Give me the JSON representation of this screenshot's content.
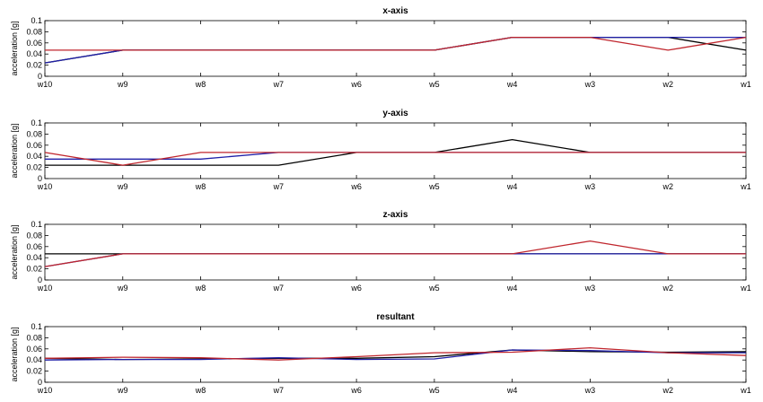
{
  "chart_data": [
    {
      "type": "line",
      "title": "x-axis",
      "ylabel": "acceleration [g]",
      "categories": [
        "w10",
        "w9",
        "w8",
        "w7",
        "w6",
        "w5",
        "w4",
        "w3",
        "w2",
        "w1"
      ],
      "yticks": [
        "0",
        "0.02",
        "0.04",
        "0.06",
        "0.08",
        "0.1"
      ],
      "ylim": [
        0,
        0.1
      ],
      "grid": false,
      "series": [
        {
          "color": "#000000",
          "values": [
            0.024,
            0.047,
            0.047,
            0.047,
            0.047,
            0.047,
            0.07,
            0.07,
            0.07,
            0.047
          ]
        },
        {
          "color": "#1f1fa8",
          "values": [
            0.024,
            0.047,
            0.047,
            0.047,
            0.047,
            0.047,
            0.07,
            0.07,
            0.07,
            0.07
          ]
        },
        {
          "color": "#c0262d",
          "values": [
            0.047,
            0.047,
            0.047,
            0.047,
            0.047,
            0.047,
            0.07,
            0.07,
            0.047,
            0.07
          ]
        }
      ]
    },
    {
      "type": "line",
      "title": "y-axis",
      "ylabel": "acceleration [g]",
      "categories": [
        "w10",
        "w9",
        "w8",
        "w7",
        "w6",
        "w5",
        "w4",
        "w3",
        "w2",
        "w1"
      ],
      "yticks": [
        "0",
        "0.02",
        "0.04",
        "0.06",
        "0.08",
        "0.1"
      ],
      "ylim": [
        0,
        0.1
      ],
      "grid": false,
      "series": [
        {
          "color": "#000000",
          "values": [
            0.024,
            0.024,
            0.024,
            0.024,
            0.047,
            0.047,
            0.07,
            0.047,
            0.047,
            0.047
          ]
        },
        {
          "color": "#1f1fa8",
          "values": [
            0.035,
            0.035,
            0.035,
            0.047,
            0.047,
            0.047,
            0.047,
            0.047,
            0.047,
            0.047
          ]
        },
        {
          "color": "#c0262d",
          "values": [
            0.047,
            0.024,
            0.047,
            0.047,
            0.047,
            0.047,
            0.047,
            0.047,
            0.047,
            0.047
          ]
        }
      ]
    },
    {
      "type": "line",
      "title": "z-axis",
      "ylabel": "acceleration [g]",
      "categories": [
        "w10",
        "w9",
        "w8",
        "w7",
        "w6",
        "w5",
        "w4",
        "w3",
        "w2",
        "w1"
      ],
      "yticks": [
        "0",
        "0.02",
        "0.04",
        "0.06",
        "0.08",
        "0.1"
      ],
      "ylim": [
        0,
        0.1
      ],
      "grid": false,
      "series": [
        {
          "color": "#000000",
          "values": [
            0.047,
            0.047,
            0.047,
            0.047,
            0.047,
            0.047,
            0.047,
            0.047,
            0.047,
            0.047
          ]
        },
        {
          "color": "#1f1fa8",
          "values": [
            0.024,
            0.047,
            0.047,
            0.047,
            0.047,
            0.047,
            0.047,
            0.047,
            0.047,
            0.047
          ]
        },
        {
          "color": "#c0262d",
          "values": [
            0.024,
            0.047,
            0.047,
            0.047,
            0.047,
            0.047,
            0.047,
            0.07,
            0.047,
            0.047
          ]
        }
      ]
    },
    {
      "type": "line",
      "title": "resultant",
      "ylabel": "acceleration [g]",
      "categories": [
        "w10",
        "w9",
        "w8",
        "w7",
        "w6",
        "w5",
        "w4",
        "w3",
        "w2",
        "w1"
      ],
      "yticks": [
        "0",
        "0.02",
        "0.04",
        "0.06",
        "0.08",
        "0.1"
      ],
      "ylim": [
        0,
        0.1
      ],
      "grid": false,
      "series": [
        {
          "color": "#000000",
          "values": [
            0.043,
            0.041,
            0.042,
            0.043,
            0.043,
            0.046,
            0.058,
            0.055,
            0.054,
            0.055
          ]
        },
        {
          "color": "#1f1fa8",
          "values": [
            0.04,
            0.041,
            0.041,
            0.044,
            0.041,
            0.042,
            0.058,
            0.057,
            0.053,
            0.053
          ]
        },
        {
          "color": "#c0262d",
          "values": [
            0.043,
            0.045,
            0.044,
            0.04,
            0.046,
            0.053,
            0.054,
            0.062,
            0.053,
            0.048
          ]
        }
      ]
    }
  ]
}
